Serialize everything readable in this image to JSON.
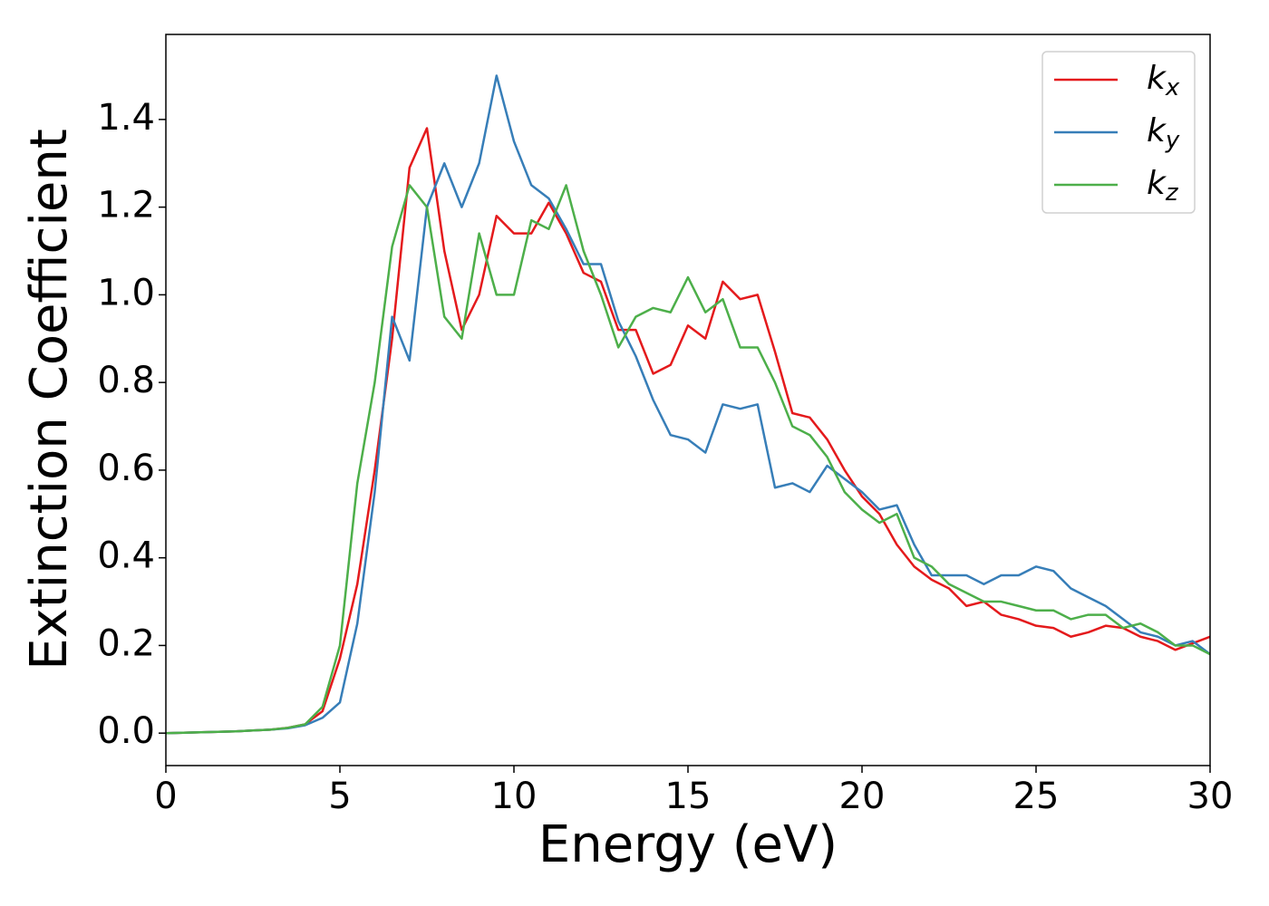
{
  "chart_data": {
    "type": "line",
    "xlabel": "Energy (eV)",
    "ylabel": "Extinction Coefficient",
    "x": [
      0,
      0.5,
      1,
      1.5,
      2,
      2.5,
      3,
      3.5,
      4,
      4.5,
      5,
      5.5,
      6,
      6.5,
      7,
      7.5,
      8,
      8.5,
      9,
      9.5,
      10,
      10.5,
      11,
      11.5,
      12,
      12.5,
      13,
      13.5,
      14,
      14.5,
      15,
      15.5,
      16,
      16.5,
      17,
      17.5,
      18,
      18.5,
      19,
      19.5,
      20,
      20.5,
      21,
      21.5,
      22,
      22.5,
      23,
      23.5,
      24,
      24.5,
      25,
      25.5,
      26,
      26.5,
      27,
      27.5,
      28,
      28.5,
      29,
      29.5,
      30
    ],
    "series": [
      {
        "name": "kx",
        "color": "#e41a1c",
        "values": [
          0,
          0.001,
          0.002,
          0.003,
          0.004,
          0.006,
          0.008,
          0.012,
          0.02,
          0.05,
          0.17,
          0.34,
          0.6,
          0.9,
          1.29,
          1.38,
          1.1,
          0.92,
          1.0,
          1.18,
          1.14,
          1.14,
          1.21,
          1.14,
          1.05,
          1.03,
          0.92,
          0.92,
          0.82,
          0.84,
          0.93,
          0.9,
          1.03,
          0.99,
          1.0,
          0.87,
          0.73,
          0.72,
          0.67,
          0.6,
          0.54,
          0.5,
          0.43,
          0.38,
          0.35,
          0.33,
          0.29,
          0.3,
          0.27,
          0.26,
          0.245,
          0.24,
          0.22,
          0.23,
          0.245,
          0.24,
          0.22,
          0.21,
          0.19,
          0.205,
          0.22
        ]
      },
      {
        "name": "ky",
        "color": "#377eb8",
        "values": [
          0,
          0.001,
          0.002,
          0.003,
          0.004,
          0.006,
          0.008,
          0.011,
          0.018,
          0.035,
          0.07,
          0.25,
          0.55,
          0.95,
          0.85,
          1.2,
          1.3,
          1.2,
          1.3,
          1.5,
          1.35,
          1.25,
          1.22,
          1.15,
          1.07,
          1.07,
          0.94,
          0.86,
          0.76,
          0.68,
          0.67,
          0.64,
          0.75,
          0.74,
          0.75,
          0.56,
          0.57,
          0.55,
          0.61,
          0.58,
          0.55,
          0.51,
          0.52,
          0.43,
          0.36,
          0.36,
          0.36,
          0.34,
          0.36,
          0.36,
          0.38,
          0.37,
          0.33,
          0.31,
          0.29,
          0.26,
          0.23,
          0.22,
          0.2,
          0.21,
          0.18
        ]
      },
      {
        "name": "kz",
        "color": "#4daf4a",
        "values": [
          0,
          0.001,
          0.002,
          0.003,
          0.004,
          0.006,
          0.008,
          0.012,
          0.02,
          0.06,
          0.2,
          0.57,
          0.8,
          1.11,
          1.25,
          1.2,
          0.95,
          0.9,
          1.14,
          1.0,
          1.0,
          1.17,
          1.15,
          1.25,
          1.1,
          1.0,
          0.88,
          0.95,
          0.97,
          0.96,
          1.04,
          0.96,
          0.99,
          0.88,
          0.88,
          0.8,
          0.7,
          0.68,
          0.63,
          0.55,
          0.51,
          0.48,
          0.5,
          0.4,
          0.38,
          0.34,
          0.32,
          0.3,
          0.3,
          0.29,
          0.28,
          0.28,
          0.26,
          0.27,
          0.27,
          0.24,
          0.25,
          0.23,
          0.2,
          0.2,
          0.18
        ]
      }
    ],
    "xlim": [
      0,
      30
    ],
    "xticks": [
      0,
      5,
      10,
      15,
      20,
      25,
      30
    ],
    "ylim": [
      -0.074,
      1.594
    ],
    "yticks": [
      {
        "value": 0,
        "label": "0.0"
      },
      0.2,
      0.4,
      0.6,
      0.8,
      {
        "value": 1,
        "label": "1.0"
      },
      1.2,
      1.4
    ],
    "legend": "upper right",
    "grid": false
  }
}
